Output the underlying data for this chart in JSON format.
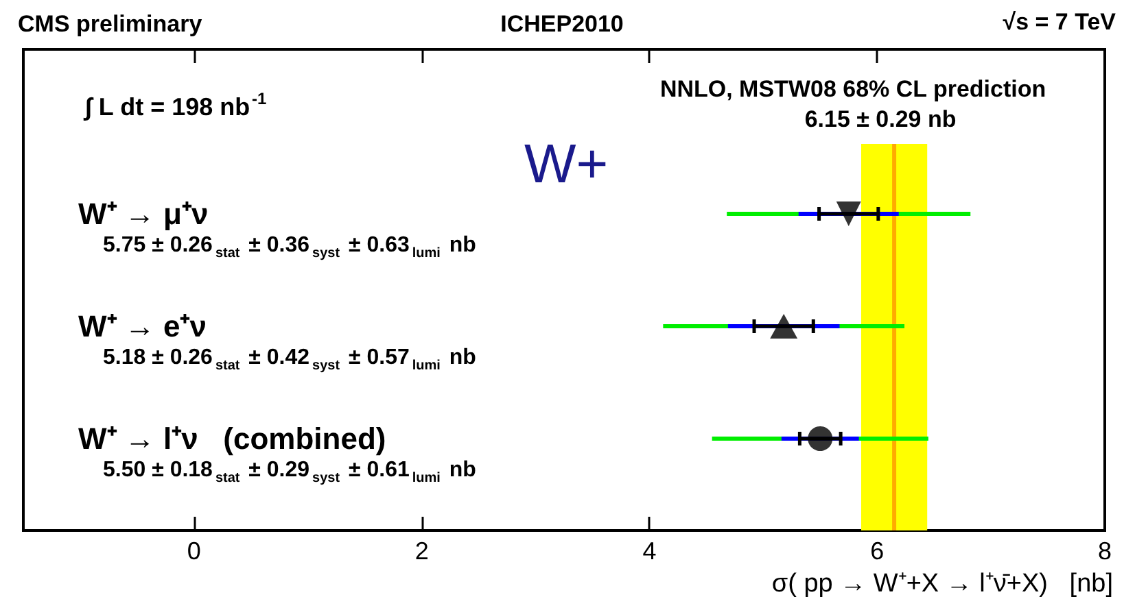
{
  "chart_data": {
    "type": "scatter",
    "orientation": "horizontal",
    "title": "CMS preliminary",
    "subtitle": "ICHEP2010",
    "xlabel": "σ( pp → W⁺+X → l⁺ν̄+X)   [nb]",
    "categories": [
      "W⁺ → μ⁺ν",
      "W⁺ → e⁺ν",
      "W⁺ → l⁺ν   (combined)"
    ],
    "series": [
      {
        "type": "bar",
        "color": "#00ee00",
        "base": [
          4.68,
          4.12,
          4.55
        ],
        "values": [
          2.14,
          2.12,
          1.9
        ]
      },
      {
        "type": "bar",
        "color": "#0000ff",
        "base": [
          5.31,
          4.69,
          5.16
        ],
        "values": [
          0.88,
          0.98,
          0.68
        ]
      },
      {
        "color": "#000000",
        "marker": "triangle-down",
        "values": [
          5.75,
          null,
          null
        ],
        "errors": [
          0.26,
          null,
          null
        ]
      },
      {
        "color": "#000000",
        "marker": "triangle",
        "values": [
          null,
          5.18,
          null
        ],
        "errors": [
          null,
          0.26,
          null
        ]
      },
      {
        "color": "#000000",
        "marker": "circle",
        "values": [
          null,
          null,
          5.5
        ],
        "errors": [
          null,
          null,
          0.18
        ]
      }
    ],
    "xlim": [
      -1.5,
      8
    ],
    "xticks": [
      0,
      2,
      4,
      6,
      8
    ],
    "bands": [
      {
        "axis": "x",
        "from": 5.86,
        "to": 6.44,
        "label": "NNLO, MSTW08 68% CL prediction",
        "color": "#ffff00"
      }
    ],
    "ref_lines": [
      {
        "axis": "x",
        "value": 6.15,
        "label": "6.15 ± 0.29 nb",
        "color": "#ffaa00"
      }
    ],
    "annotations": [
      "5.75 ± 0.26$_{stat}$ ± 0.36$_{syst}$ ± 0.63$_{lumi}$ nb",
      "5.18 ± 0.26$_{stat}$ ± 0.42$_{syst}$ ± 0.57$_{lumi}$ nb",
      "5.50 ± 0.18$_{stat}$ ± 0.29$_{syst}$ ± 0.61$_{lumi}$ nb",
      "∫ L dt = 198 nb$^{-1}$",
      "W+",
      "√s = 7 TeV"
    ],
    "grid": false
  }
}
